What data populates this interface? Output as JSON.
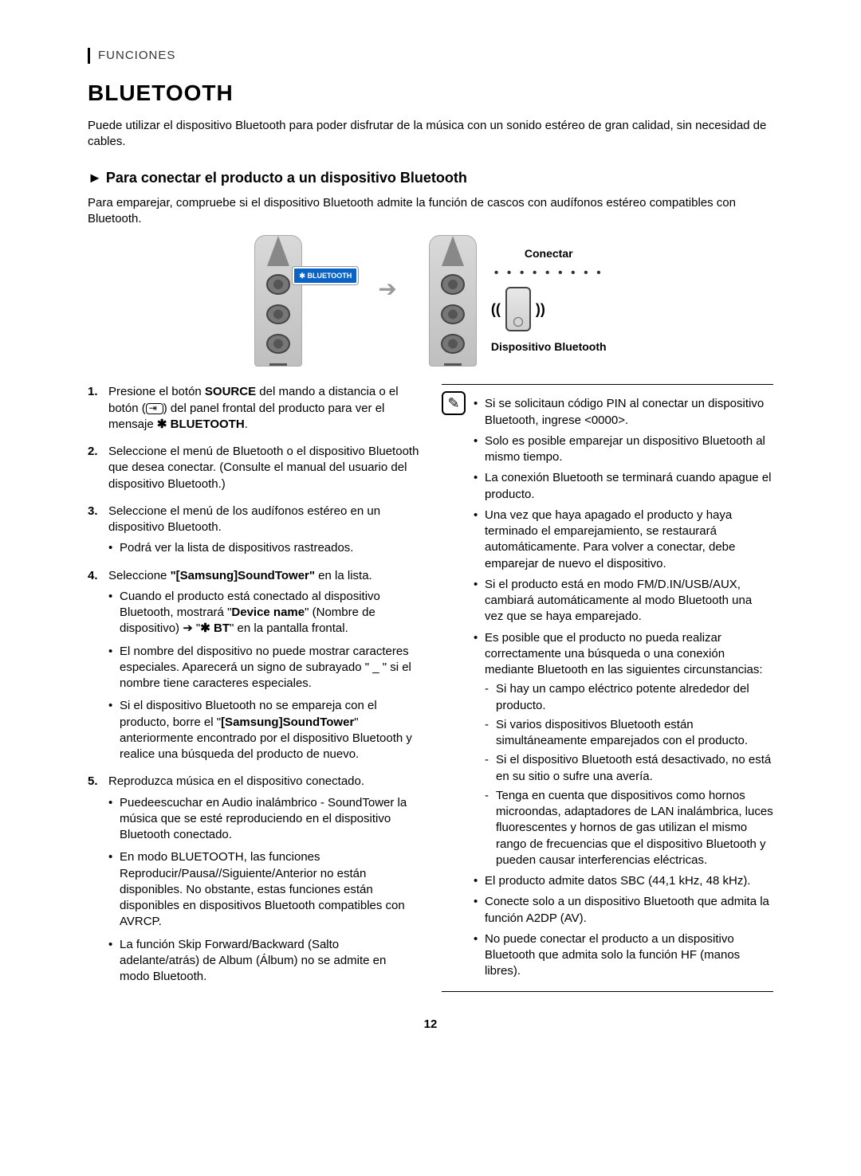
{
  "section_label": "FUNCIONES",
  "title": "BLUETOOTH",
  "intro": "Puede utilizar el dispositivo Bluetooth para poder disfrutar de la música con un sonido estéreo de gran calidad, sin necesidad de cables.",
  "subtitle_marker": "►",
  "subtitle": "Para conectar el producto a un dispositivo Bluetooth",
  "sub_intro": "Para emparejar, compruebe si el dispositivo Bluetooth admite la función de cascos con audífonos estéreo compatibles con Bluetooth.",
  "diagram": {
    "bt_badge": "✱ BLUETOOTH",
    "arrow": "➔",
    "connect_label": "Conectar",
    "device_label": "Dispositivo Bluetooth",
    "wave_left": "((",
    "wave_right": "))"
  },
  "steps": [
    {
      "pre": "Presione el botón ",
      "b1": "SOURCE",
      "mid1": " del mando a distancia o el botón (",
      "icon": true,
      "mid2": ") del panel frontal del producto para ver el mensaje ",
      "bt_sym": "✱",
      "b2": " BLUETOOTH",
      "post": "."
    },
    {
      "text": "Seleccione el menú de Bluetooth o el dispositivo Bluetooth que desea conectar. (Consulte el manual del usuario del dispositivo Bluetooth.)"
    },
    {
      "text": "Seleccione el menú de los audífonos estéreo en un dispositivo Bluetooth.",
      "sub": [
        "Podrá ver la lista de dispositivos rastreados."
      ]
    },
    {
      "pre": "Seleccione ",
      "b1": "\"[Samsung]SoundTower\"",
      "post": " en la lista.",
      "sub_custom": true
    },
    {
      "text": "Reproduzca música en el dispositivo conectado.",
      "sub": [
        "Puedeescuchar en Audio inalámbrico - SoundTower la música que se esté reproduciendo en el dispositivo Bluetooth conectado.",
        "En modo BLUETOOTH, las funciones Reproducir/Pausa//Siguiente/Anterior no están disponibles. No obstante, estas funciones están disponibles en dispositivos Bluetooth compatibles con AVRCP.",
        "La función Skip Forward/Backward (Salto adelante/atrás) de Album (Álbum) no se admite en modo Bluetooth."
      ]
    }
  ],
  "step4_sub": {
    "a_pre": "Cuando el producto está conectado al dispositivo Bluetooth, mostrará \"",
    "a_b1": "Device name",
    "a_mid": "\" (Nombre de dispositivo) ➔ \"",
    "a_sym": "✱",
    "a_b2": " BT",
    "a_post": "\" en la pantalla frontal.",
    "b": "El nombre del dispositivo no puede mostrar caracteres especiales. Aparecerá un signo de subrayado \" _ \" si el nombre tiene caracteres especiales.",
    "c_pre": "Si el dispositivo Bluetooth no se empareja con el producto, borre el \"",
    "c_b": "[Samsung]SoundTower",
    "c_post": "\" anteriormente encontrado por el dispositivo Bluetooth y realice una búsqueda del producto de nuevo."
  },
  "notes": [
    "Si se solicitaun código PIN al conectar un dispositivo Bluetooth, ingrese <0000>.",
    "Solo es posible emparejar un dispositivo Bluetooth al mismo tiempo.",
    "La conexión Bluetooth se terminará cuando apague el producto.",
    "Una vez que haya apagado el producto y haya terminado el emparejamiento, se restaurará automáticamente. Para volver a conectar, debe emparejar de nuevo el dispositivo.",
    "Si el producto está en modo FM/D.IN/USB/AUX, cambiará automáticamente al modo Bluetooth una vez que se haya emparejado."
  ],
  "notes_circ_lead": "Es posible que el producto no pueda realizar correctamente una búsqueda o una conexión mediante Bluetooth en las siguientes circunstancias:",
  "notes_circ": [
    "Si hay un campo eléctrico potente alrededor del producto.",
    "Si varios dispositivos Bluetooth están simultáneamente emparejados con el producto.",
    "Si el dispositivo Bluetooth está desactivado, no está en su sitio o sufre una avería.",
    "Tenga en cuenta que dispositivos como hornos microondas, adaptadores de LAN inalámbrica, luces fluorescentes y hornos de gas utilizan el mismo rango de frecuencias que el dispositivo Bluetooth y pueden causar interferencias eléctricas."
  ],
  "notes_tail": [
    "El producto admite datos SBC (44,1 kHz, 48 kHz).",
    "Conecte solo a un dispositivo Bluetooth que admita la función A2DP (AV).",
    "No puede conectar el producto a un dispositivo Bluetooth que admita solo la función HF (manos libres)."
  ],
  "page_number": "12"
}
